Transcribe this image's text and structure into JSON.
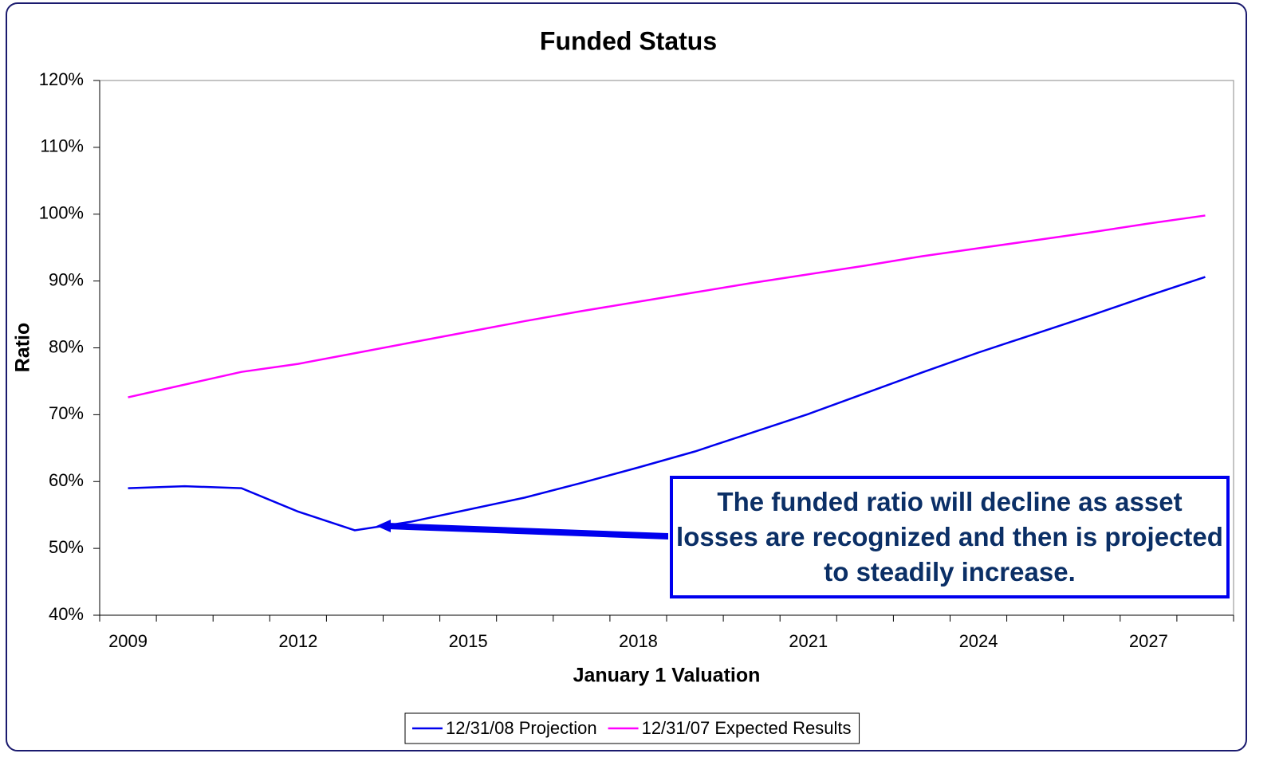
{
  "chart_data": {
    "type": "line",
    "title": "Funded Status",
    "x_label": "January 1 Valuation",
    "y_label": "Ratio",
    "categories": [
      "2009",
      null,
      null,
      "2012",
      null,
      null,
      "2015",
      null,
      null,
      "2018",
      null,
      null,
      "2021",
      null,
      null,
      "2024",
      null,
      null,
      "2027",
      null
    ],
    "series": [
      {
        "name": "12/31/08 Projection",
        "color": "#0000ee",
        "values": [
          59.0,
          59.3,
          59.0,
          55.5,
          52.7,
          54.0,
          55.8,
          57.6,
          59.8,
          62.1,
          64.5,
          67.3,
          70.1,
          73.2,
          76.3,
          79.3,
          82.1,
          84.9,
          87.8,
          90.6
        ]
      },
      {
        "name": "12/31/07 Expected Results",
        "color": "#ff00ff",
        "values": [
          72.6,
          74.5,
          76.4,
          77.6,
          79.2,
          80.8,
          82.4,
          84.0,
          85.5,
          86.9,
          88.3,
          89.7,
          91.0,
          92.3,
          93.7,
          94.9,
          96.1,
          97.3,
          98.6,
          99.8
        ]
      }
    ],
    "ylim": [
      40,
      120
    ],
    "yticks": [
      {
        "value": 40,
        "label": "40%"
      },
      {
        "value": 50,
        "label": "50%"
      },
      {
        "value": 60,
        "label": "60%"
      },
      {
        "value": 70,
        "label": "70%"
      },
      {
        "value": 80,
        "label": "80%"
      },
      {
        "value": 90,
        "label": "90%"
      },
      {
        "value": 100,
        "label": "100%"
      },
      {
        "value": 110,
        "label": "110%"
      },
      {
        "value": 120,
        "label": "120%"
      }
    ],
    "grid": false,
    "legend": "bottom",
    "annotation": "The funded ratio will decline as asset losses are recognized and then is projected to steadily increase."
  }
}
